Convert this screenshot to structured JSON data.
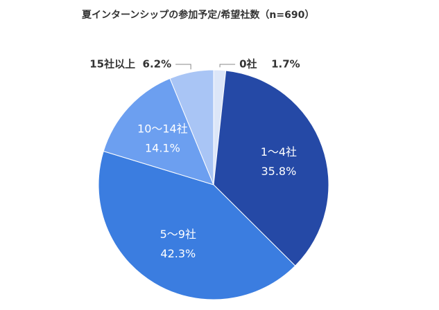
{
  "chart_data": {
    "type": "pie",
    "title": "夏インターンシップの参加予定/希望社数（n=690）",
    "categories": [
      "0社",
      "1〜4社",
      "5〜9社",
      "10〜14社",
      "15社以上"
    ],
    "values": [
      1.7,
      35.8,
      42.3,
      14.1,
      6.2
    ],
    "value_labels": [
      "1.7%",
      "35.8%",
      "42.3%",
      "14.1%",
      "6.2%"
    ],
    "colors": [
      "#dce6f8",
      "#2549a6",
      "#3b7de0",
      "#6c9ff0",
      "#a9c5f5"
    ]
  }
}
